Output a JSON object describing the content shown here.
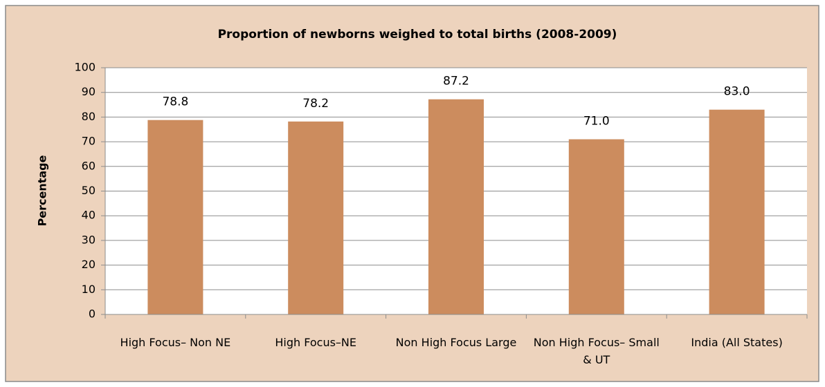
{
  "chart_data": {
    "type": "bar",
    "title": "Proportion of newborns weighed to total births (2008-2009)",
    "y_label": "Percentage",
    "categories": [
      "High Focus– Non NE",
      "High Focus–NE",
      "Non High Focus Large",
      "Non High Focus– Small & UT",
      "India (All States)"
    ],
    "values": [
      78.8,
      78.2,
      87.2,
      71.0,
      83.0
    ],
    "value_labels": [
      "78.8",
      "78.2",
      "87.2",
      "71.0",
      "83.0"
    ],
    "color": "#cc8c5e",
    "ylim": [
      0,
      100
    ],
    "yticks": [
      0,
      10,
      20,
      30,
      40,
      50,
      60,
      70,
      80,
      90,
      100
    ],
    "grid": true
  }
}
